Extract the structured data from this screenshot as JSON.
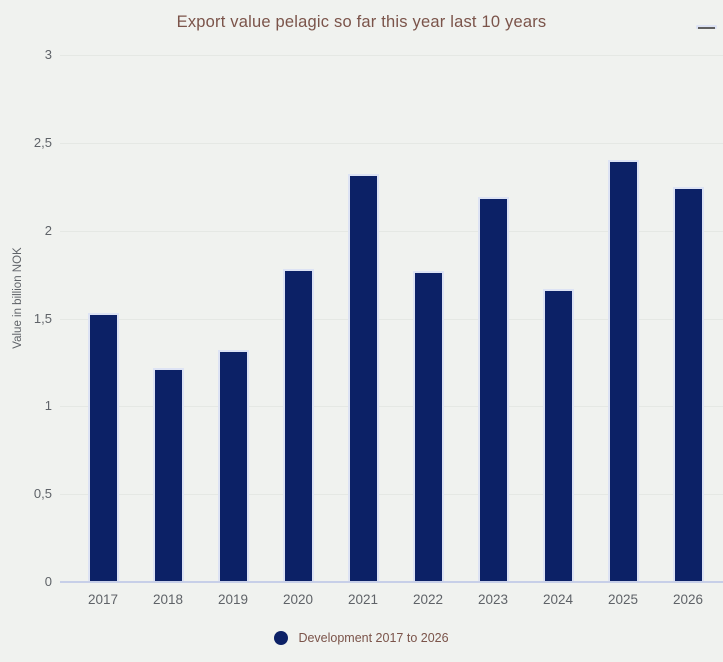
{
  "header": {
    "title": "Export value pelagic so far this year last 10 years"
  },
  "icons": {
    "menu": "hamburger-icon",
    "legend_marker": "circle-icon"
  },
  "chart_data": {
    "type": "bar",
    "title": "Export value pelagic so far this year last 10 years",
    "xlabel": "",
    "ylabel": "Value in billion NOK",
    "categories": [
      "2017",
      "2018",
      "2019",
      "2020",
      "2021",
      "2022",
      "2023",
      "2024",
      "2025",
      "2026"
    ],
    "series": [
      {
        "name": "Development 2017 to 2026",
        "values": [
          1.53,
          1.22,
          1.32,
          1.78,
          2.32,
          1.77,
          2.19,
          1.67,
          2.4,
          2.25
        ]
      }
    ],
    "ylim": [
      0,
      3
    ],
    "yticks": [
      {
        "value": 0,
        "label": "0"
      },
      {
        "value": 0.5,
        "label": "0,5"
      },
      {
        "value": 1,
        "label": "1"
      },
      {
        "value": 1.5,
        "label": "1,5"
      },
      {
        "value": 2,
        "label": "2"
      },
      {
        "value": 2.5,
        "label": "2,5"
      },
      {
        "value": 3,
        "label": "3"
      }
    ],
    "grid": true,
    "legend_position": "bottom"
  },
  "legend": {
    "label": "Development 2017 to 2026"
  },
  "colors": {
    "background": "#f0f2ef",
    "bar": "#0c2166",
    "bar_border": "#dde3f4",
    "title_text": "#7b544a",
    "axis_text": "#5f6368",
    "axis_line": "#c7cfe8",
    "gridline": "#e5e8e4",
    "icon": "#606060"
  }
}
